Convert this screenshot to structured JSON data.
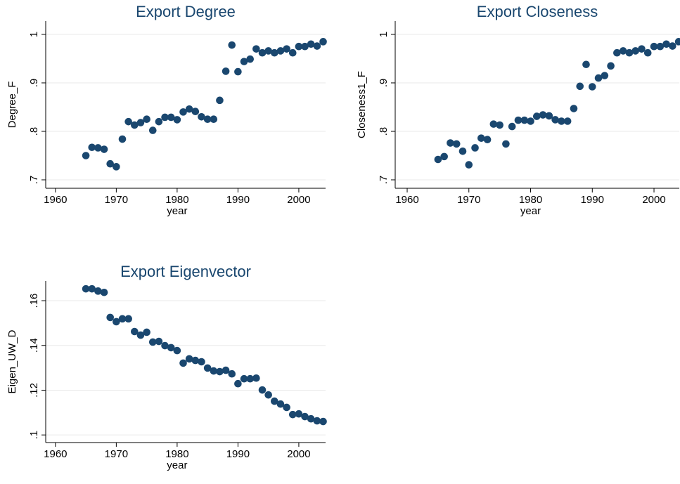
{
  "chart_data": [
    {
      "type": "scatter",
      "title": "Export Degree",
      "xlabel": "year",
      "ylabel": "Degree_F",
      "color": "#1a476f",
      "grid": true,
      "x": [
        1965,
        1966,
        1967,
        1968,
        1969,
        1970,
        1971,
        1972,
        1973,
        1974,
        1975,
        1976,
        1977,
        1978,
        1979,
        1980,
        1981,
        1982,
        1983,
        1984,
        1985,
        1986,
        1987,
        1988,
        1989,
        1990,
        1991,
        1992,
        1993,
        1994,
        1995,
        1996,
        1997,
        1998,
        1999,
        2000,
        2001,
        2002,
        2003,
        2004
      ],
      "values": [
        0.75,
        0.767,
        0.766,
        0.763,
        0.733,
        0.727,
        0.784,
        0.82,
        0.813,
        0.818,
        0.825,
        0.802,
        0.82,
        0.829,
        0.829,
        0.824,
        0.84,
        0.846,
        0.841,
        0.83,
        0.825,
        0.825,
        0.864,
        0.924,
        0.978,
        0.923,
        0.944,
        0.949,
        0.97,
        0.962,
        0.966,
        0.962,
        0.966,
        0.97,
        0.962,
        0.975,
        0.975,
        0.98,
        0.976,
        0.985
      ],
      "xlim": [
        1958.4,
        2004.4
      ],
      "ylim": [
        0.6826,
        1.0275
      ],
      "xticks": [
        1960,
        1970,
        1980,
        1990,
        2000
      ],
      "yticks": [
        {
          "value": 0.7,
          "label": ".7"
        },
        {
          "value": 0.8,
          "label": ".8"
        },
        {
          "value": 0.9,
          "label": ".9"
        },
        1
      ]
    },
    {
      "type": "scatter",
      "title": "Export Closeness",
      "xlabel": "year",
      "ylabel": "Closeness1_F",
      "color": "#1a476f",
      "grid": true,
      "x": [
        1965,
        1966,
        1967,
        1968,
        1969,
        1970,
        1971,
        1972,
        1973,
        1974,
        1975,
        1976,
        1977,
        1978,
        1979,
        1980,
        1981,
        1982,
        1983,
        1984,
        1985,
        1986,
        1987,
        1988,
        1989,
        1990,
        1991,
        1992,
        1993,
        1994,
        1995,
        1996,
        1997,
        1998,
        1999,
        2000,
        2001,
        2002,
        2003,
        2004
      ],
      "values": [
        0.742,
        0.748,
        0.776,
        0.774,
        0.759,
        0.731,
        0.766,
        0.786,
        0.783,
        0.815,
        0.813,
        0.774,
        0.81,
        0.823,
        0.823,
        0.821,
        0.831,
        0.834,
        0.832,
        0.824,
        0.821,
        0.821,
        0.847,
        0.893,
        0.938,
        0.892,
        0.91,
        0.915,
        0.935,
        0.962,
        0.966,
        0.962,
        0.966,
        0.97,
        0.962,
        0.975,
        0.975,
        0.98,
        0.976,
        0.985
      ],
      "xlim": [
        1958.06,
        2004.1
      ],
      "ylim": [
        0.6826,
        1.0275
      ],
      "xticks": [
        1960,
        1970,
        1980,
        1990,
        2000
      ],
      "yticks": [
        {
          "value": 0.7,
          "label": ".7"
        },
        {
          "value": 0.8,
          "label": ".8"
        },
        {
          "value": 0.9,
          "label": ".9"
        },
        1
      ]
    },
    {
      "type": "scatter",
      "title": "Export Eigenvector",
      "xlabel": "year",
      "ylabel": "Eigen_UW_D",
      "color": "#1a476f",
      "grid": true,
      "x": [
        1965,
        1966,
        1967,
        1968,
        1969,
        1970,
        1971,
        1972,
        1973,
        1974,
        1975,
        1976,
        1977,
        1978,
        1979,
        1980,
        1981,
        1982,
        1983,
        1984,
        1985,
        1986,
        1987,
        1988,
        1989,
        1990,
        1991,
        1992,
        1993,
        1994,
        1995,
        1996,
        1997,
        1998,
        1999,
        2000,
        2001,
        2002,
        2003,
        2004
      ],
      "values": [
        0.1653,
        0.1653,
        0.1643,
        0.1637,
        0.1525,
        0.1506,
        0.1519,
        0.1519,
        0.1462,
        0.1446,
        0.1459,
        0.1415,
        0.1418,
        0.1399,
        0.139,
        0.1377,
        0.1321,
        0.134,
        0.1333,
        0.1327,
        0.1299,
        0.1286,
        0.1283,
        0.1289,
        0.1273,
        0.1229,
        0.1251,
        0.1251,
        0.1254,
        0.1201,
        0.1179,
        0.1151,
        0.1138,
        0.1123,
        0.1091,
        0.1094,
        0.1082,
        0.1072,
        0.1063,
        0.106
      ],
      "xlim": [
        1958.4,
        2004.4
      ],
      "ylim": [
        0.0966,
        0.1688
      ],
      "xticks": [
        1960,
        1970,
        1980,
        1990,
        2000
      ],
      "yticks": [
        {
          "value": 0.1,
          "label": ".1"
        },
        {
          "value": 0.12,
          "label": ".12"
        },
        {
          "value": 0.14,
          "label": ".14"
        },
        {
          "value": 0.16,
          "label": ".16"
        }
      ]
    }
  ]
}
